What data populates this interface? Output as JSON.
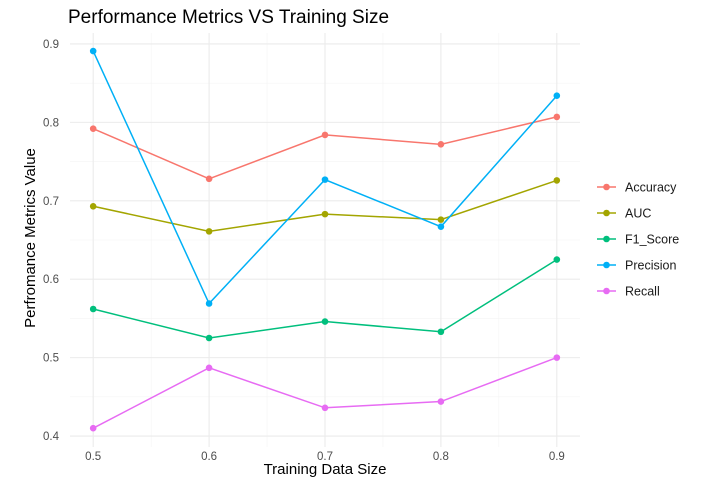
{
  "chart_data": {
    "type": "line",
    "title": "Performance Metrics VS Training Size",
    "xlabel": "Training Data Size",
    "ylabel": "Perfromance Metrics Value",
    "x": [
      0.5,
      0.6,
      0.7,
      0.8,
      0.9
    ],
    "x_ticks": [
      "0.5",
      "0.6",
      "0.7",
      "0.8",
      "0.9"
    ],
    "y_ticks": [
      "0.4",
      "0.5",
      "0.6",
      "0.7",
      "0.8",
      "0.9"
    ],
    "xlim": [
      0.48,
      0.92
    ],
    "ylim": [
      0.386,
      0.914
    ],
    "grid": true,
    "legend_position": "right",
    "series": [
      {
        "name": "Accuracy",
        "color": "#F8766D",
        "values": [
          0.792,
          0.728,
          0.784,
          0.772,
          0.807
        ]
      },
      {
        "name": "AUC",
        "color": "#A3A500",
        "values": [
          0.693,
          0.661,
          0.683,
          0.676,
          0.726
        ]
      },
      {
        "name": "F1_Score",
        "color": "#00BF7D",
        "values": [
          0.562,
          0.525,
          0.546,
          0.533,
          0.625
        ]
      },
      {
        "name": "Precision",
        "color": "#00B0F6",
        "values": [
          0.891,
          0.569,
          0.727,
          0.667,
          0.834
        ]
      },
      {
        "name": "Recall",
        "color": "#E76BF3",
        "values": [
          0.41,
          0.487,
          0.436,
          0.444,
          0.5
        ]
      }
    ]
  }
}
